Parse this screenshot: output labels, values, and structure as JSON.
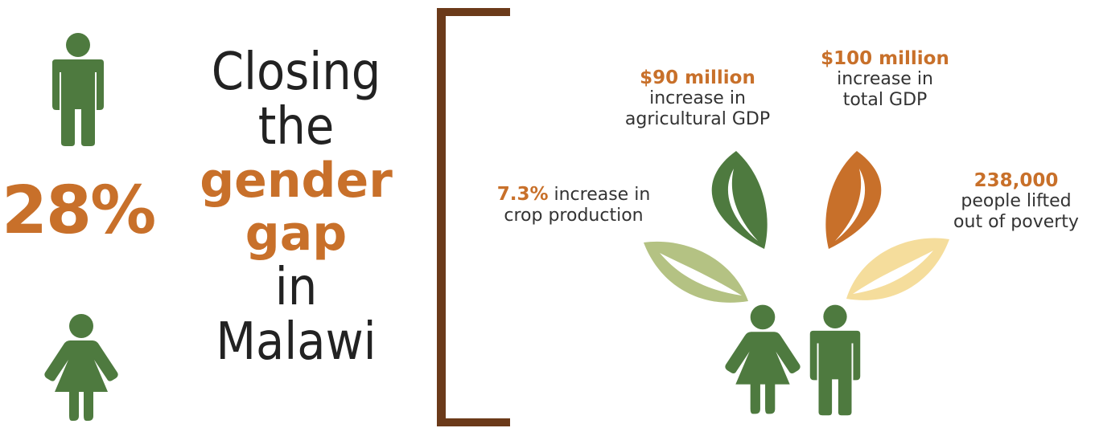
{
  "stat": {
    "value": "28%"
  },
  "title": {
    "line1": "Closing",
    "line2": "the",
    "line3": "gender",
    "line4": "gap",
    "line5": "in",
    "line6": "Malawi"
  },
  "outcomes": {
    "agricultural": {
      "value": "$90 million",
      "text1": "increase in",
      "text2": "agricultural GDP"
    },
    "total_gdp": {
      "value": "$100 million",
      "text1": "increase in",
      "text2": "total GDP"
    },
    "crop": {
      "value": "7.3%",
      "text1": " increase in",
      "text2": "crop production"
    },
    "poverty": {
      "value": "238,000",
      "text1": "people lifted",
      "text2": "out of poverty"
    }
  },
  "colors": {
    "orange": "#C8702A",
    "green": "#4E7A3F",
    "light_green": "#B4C283",
    "light_yellow": "#F5DD9C",
    "brown": "#6B3A1A"
  },
  "icons": [
    "man-icon",
    "woman-icon",
    "leaf-icon"
  ]
}
